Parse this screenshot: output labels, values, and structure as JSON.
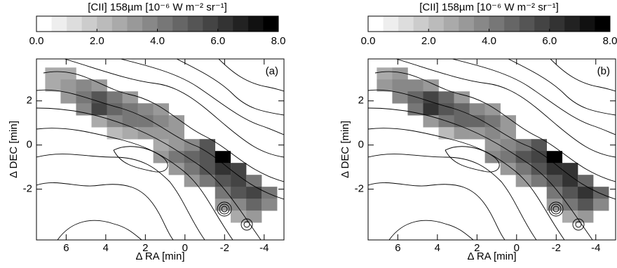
{
  "chart_data": [
    {
      "type": "heatmap",
      "label": "(a)",
      "xlabel": "Δ RA [min]",
      "ylabel": "Δ DEC [min]",
      "xlim": [
        7.5,
        -5.0
      ],
      "ylim": [
        -4.3,
        3.9
      ],
      "xticks": [
        6,
        4,
        2,
        0,
        -2,
        -4
      ],
      "yticks": [
        -2,
        0,
        2
      ],
      "colorbar": {
        "label": "[CII] 158µm [10⁻⁶ W m⁻² sr⁻¹]",
        "lim": [
          0,
          8
        ],
        "levels": 16,
        "ticks": [
          {
            "value": 0,
            "label": "0.0"
          },
          {
            "value": 2,
            "label": "2.0"
          },
          {
            "value": 4,
            "label": "4.0"
          },
          {
            "value": 6,
            "label": "6.0"
          },
          {
            "value": 8,
            "label": "8.0"
          }
        ]
      },
      "x": [
        6.67,
        5.89,
        6.67,
        5.89,
        5.11,
        4.33,
        5.89,
        5.11,
        4.33,
        3.55,
        2.77,
        5.11,
        4.33,
        3.55,
        2.77,
        1.99,
        1.21,
        4.33,
        3.55,
        2.77,
        1.99,
        1.21,
        0.43,
        3.55,
        2.77,
        1.99,
        1.21,
        0.43,
        1.21,
        0.43,
        -0.35,
        -1.13,
        1.21,
        0.43,
        -0.35,
        -1.13,
        -1.91,
        0.43,
        -0.35,
        -1.13,
        -1.91,
        -2.7,
        -0.35,
        -1.13,
        -1.91,
        -2.7,
        -3.48,
        -1.91,
        -2.7,
        -3.48,
        -4.26,
        -1.91,
        -2.7,
        -3.48,
        -4.26,
        -2.7,
        -3.48
      ],
      "y": [
        3.24,
        3.24,
        2.7,
        2.7,
        2.7,
        2.7,
        2.16,
        2.16,
        2.16,
        2.16,
        2.16,
        1.62,
        1.62,
        1.62,
        1.62,
        1.62,
        1.62,
        1.08,
        1.08,
        1.08,
        1.08,
        1.08,
        1.08,
        0.54,
        0.54,
        0.54,
        0.54,
        0.54,
        0,
        0,
        0,
        0,
        -0.54,
        -0.54,
        -0.54,
        -0.54,
        -0.54,
        -1.08,
        -1.08,
        -1.08,
        -1.08,
        -1.08,
        -1.62,
        -1.62,
        -1.62,
        -1.62,
        -1.62,
        -2.16,
        -2.16,
        -2.16,
        -2.16,
        -2.7,
        -2.7,
        -2.7,
        -2.7,
        -3.24,
        -3.24
      ],
      "values": [
        2.5,
        2.5,
        2.5,
        3,
        3.5,
        3,
        3,
        4,
        5,
        4,
        3,
        3.5,
        5.5,
        4.5,
        4,
        3.5,
        3,
        2.5,
        3.5,
        4,
        4,
        3.5,
        3,
        2,
        2.5,
        3,
        3,
        3,
        2.5,
        3,
        3.5,
        5,
        3,
        4,
        4.5,
        5,
        8,
        3,
        4,
        5,
        6,
        5.5,
        3,
        4,
        5,
        5.5,
        4,
        4,
        5,
        5.5,
        4,
        3,
        3.5,
        4.5,
        3.5,
        2.5,
        3
      ]
    },
    {
      "type": "heatmap",
      "label": "(b)",
      "xlabel": "Δ RA [min]",
      "ylabel": "Δ DEC [min]",
      "xlim": [
        7.5,
        -5.0
      ],
      "ylim": [
        -4.3,
        3.9
      ],
      "xticks": [
        6,
        4,
        2,
        0,
        -2,
        -4
      ],
      "yticks": [
        -2,
        0,
        2
      ],
      "colorbar": {
        "label": "[CII] 158µm [10⁻⁶ W m⁻² sr⁻¹]",
        "lim": [
          0,
          8
        ],
        "levels": 16,
        "ticks": [
          {
            "value": 0,
            "label": "0.0"
          },
          {
            "value": 2,
            "label": "2.0"
          },
          {
            "value": 4,
            "label": "4.0"
          },
          {
            "value": 6,
            "label": "6.0"
          },
          {
            "value": 8,
            "label": "8.0"
          }
        ]
      },
      "x": [
        6.67,
        5.89,
        6.67,
        5.89,
        5.11,
        4.33,
        5.89,
        5.11,
        4.33,
        3.55,
        2.77,
        5.11,
        4.33,
        3.55,
        2.77,
        1.99,
        1.21,
        4.33,
        3.55,
        2.77,
        1.99,
        1.21,
        0.43,
        3.55,
        2.77,
        1.99,
        1.21,
        0.43,
        1.21,
        0.43,
        -0.35,
        -1.13,
        1.21,
        0.43,
        -0.35,
        -1.13,
        -1.91,
        0.43,
        -0.35,
        -1.13,
        -1.91,
        -2.7,
        -0.35,
        -1.13,
        -1.91,
        -2.7,
        -3.48,
        -1.91,
        -2.7,
        -3.48,
        -4.26,
        -1.91,
        -2.7,
        -3.48,
        -4.26,
        -2.7,
        -3.48
      ],
      "y": [
        3.24,
        3.24,
        2.7,
        2.7,
        2.7,
        2.7,
        2.16,
        2.16,
        2.16,
        2.16,
        2.16,
        1.62,
        1.62,
        1.62,
        1.62,
        1.62,
        1.62,
        1.08,
        1.08,
        1.08,
        1.08,
        1.08,
        1.08,
        0.54,
        0.54,
        0.54,
        0.54,
        0.54,
        0,
        0,
        0,
        0,
        -0.54,
        -0.54,
        -0.54,
        -0.54,
        -0.54,
        -1.08,
        -1.08,
        -1.08,
        -1.08,
        -1.08,
        -1.62,
        -1.62,
        -1.62,
        -1.62,
        -1.62,
        -2.16,
        -2.16,
        -2.16,
        -2.16,
        -2.7,
        -2.7,
        -2.7,
        -2.7,
        -3.24,
        -3.24
      ],
      "values": [
        2.5,
        3,
        3,
        3.5,
        3.5,
        3,
        3.5,
        4.5,
        5.5,
        4.5,
        3,
        4,
        6,
        5,
        4.5,
        3.5,
        3,
        3,
        4,
        4.5,
        4.5,
        4,
        3,
        2,
        3,
        3,
        3.5,
        3,
        3,
        3.5,
        4,
        5,
        3.5,
        4,
        5,
        5.5,
        8,
        3,
        4,
        5,
        6,
        6,
        3,
        4,
        5,
        6,
        4.5,
        4,
        5,
        6,
        4.5,
        3,
        4,
        5,
        3.5,
        2.5,
        3
      ]
    }
  ]
}
